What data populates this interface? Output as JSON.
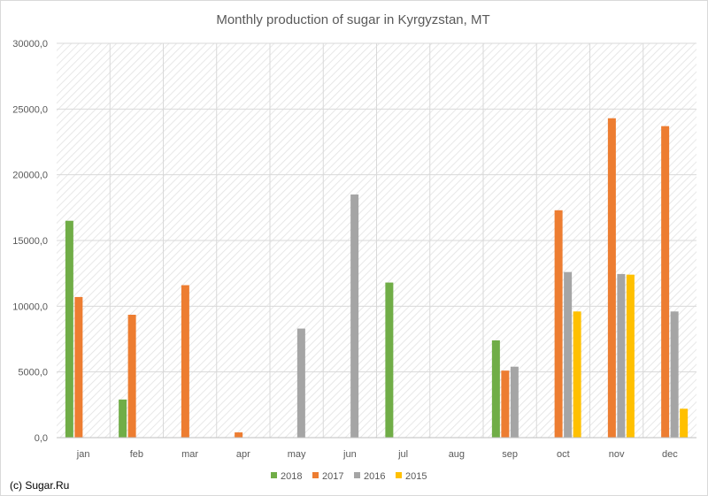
{
  "chart_data": {
    "type": "bar",
    "title": "Monthly production of sugar in Kyrgyzstan, MT",
    "categories": [
      "jan",
      "feb",
      "mar",
      "apr",
      "may",
      "jun",
      "jul",
      "aug",
      "sep",
      "oct",
      "nov",
      "dec"
    ],
    "series": [
      {
        "name": "2018",
        "color": "#70ad47",
        "values": [
          16500,
          2900,
          0,
          0,
          0,
          0,
          11800,
          0,
          7400,
          0,
          0,
          0
        ]
      },
      {
        "name": "2017",
        "color": "#ed7d31",
        "values": [
          10700,
          9350,
          11600,
          400,
          0,
          0,
          0,
          0,
          5100,
          17300,
          24300,
          23700
        ]
      },
      {
        "name": "2016",
        "color": "#a5a5a5",
        "values": [
          0,
          0,
          0,
          0,
          8300,
          18500,
          0,
          0,
          5400,
          12600,
          12450,
          9600
        ]
      },
      {
        "name": "2015",
        "color": "#ffc000",
        "values": [
          0,
          0,
          0,
          0,
          0,
          0,
          0,
          0,
          0,
          9600,
          12400,
          2200
        ]
      }
    ],
    "ylim": [
      0,
      30000
    ],
    "yticks": [
      "0,0",
      "5000,0",
      "10000,0",
      "15000,0",
      "20000,0",
      "25000,0",
      "30000,0"
    ],
    "xlabel": "",
    "ylabel": "",
    "grid": true,
    "legend_position": "bottom",
    "source_note": "(c) Sugar.Ru"
  }
}
